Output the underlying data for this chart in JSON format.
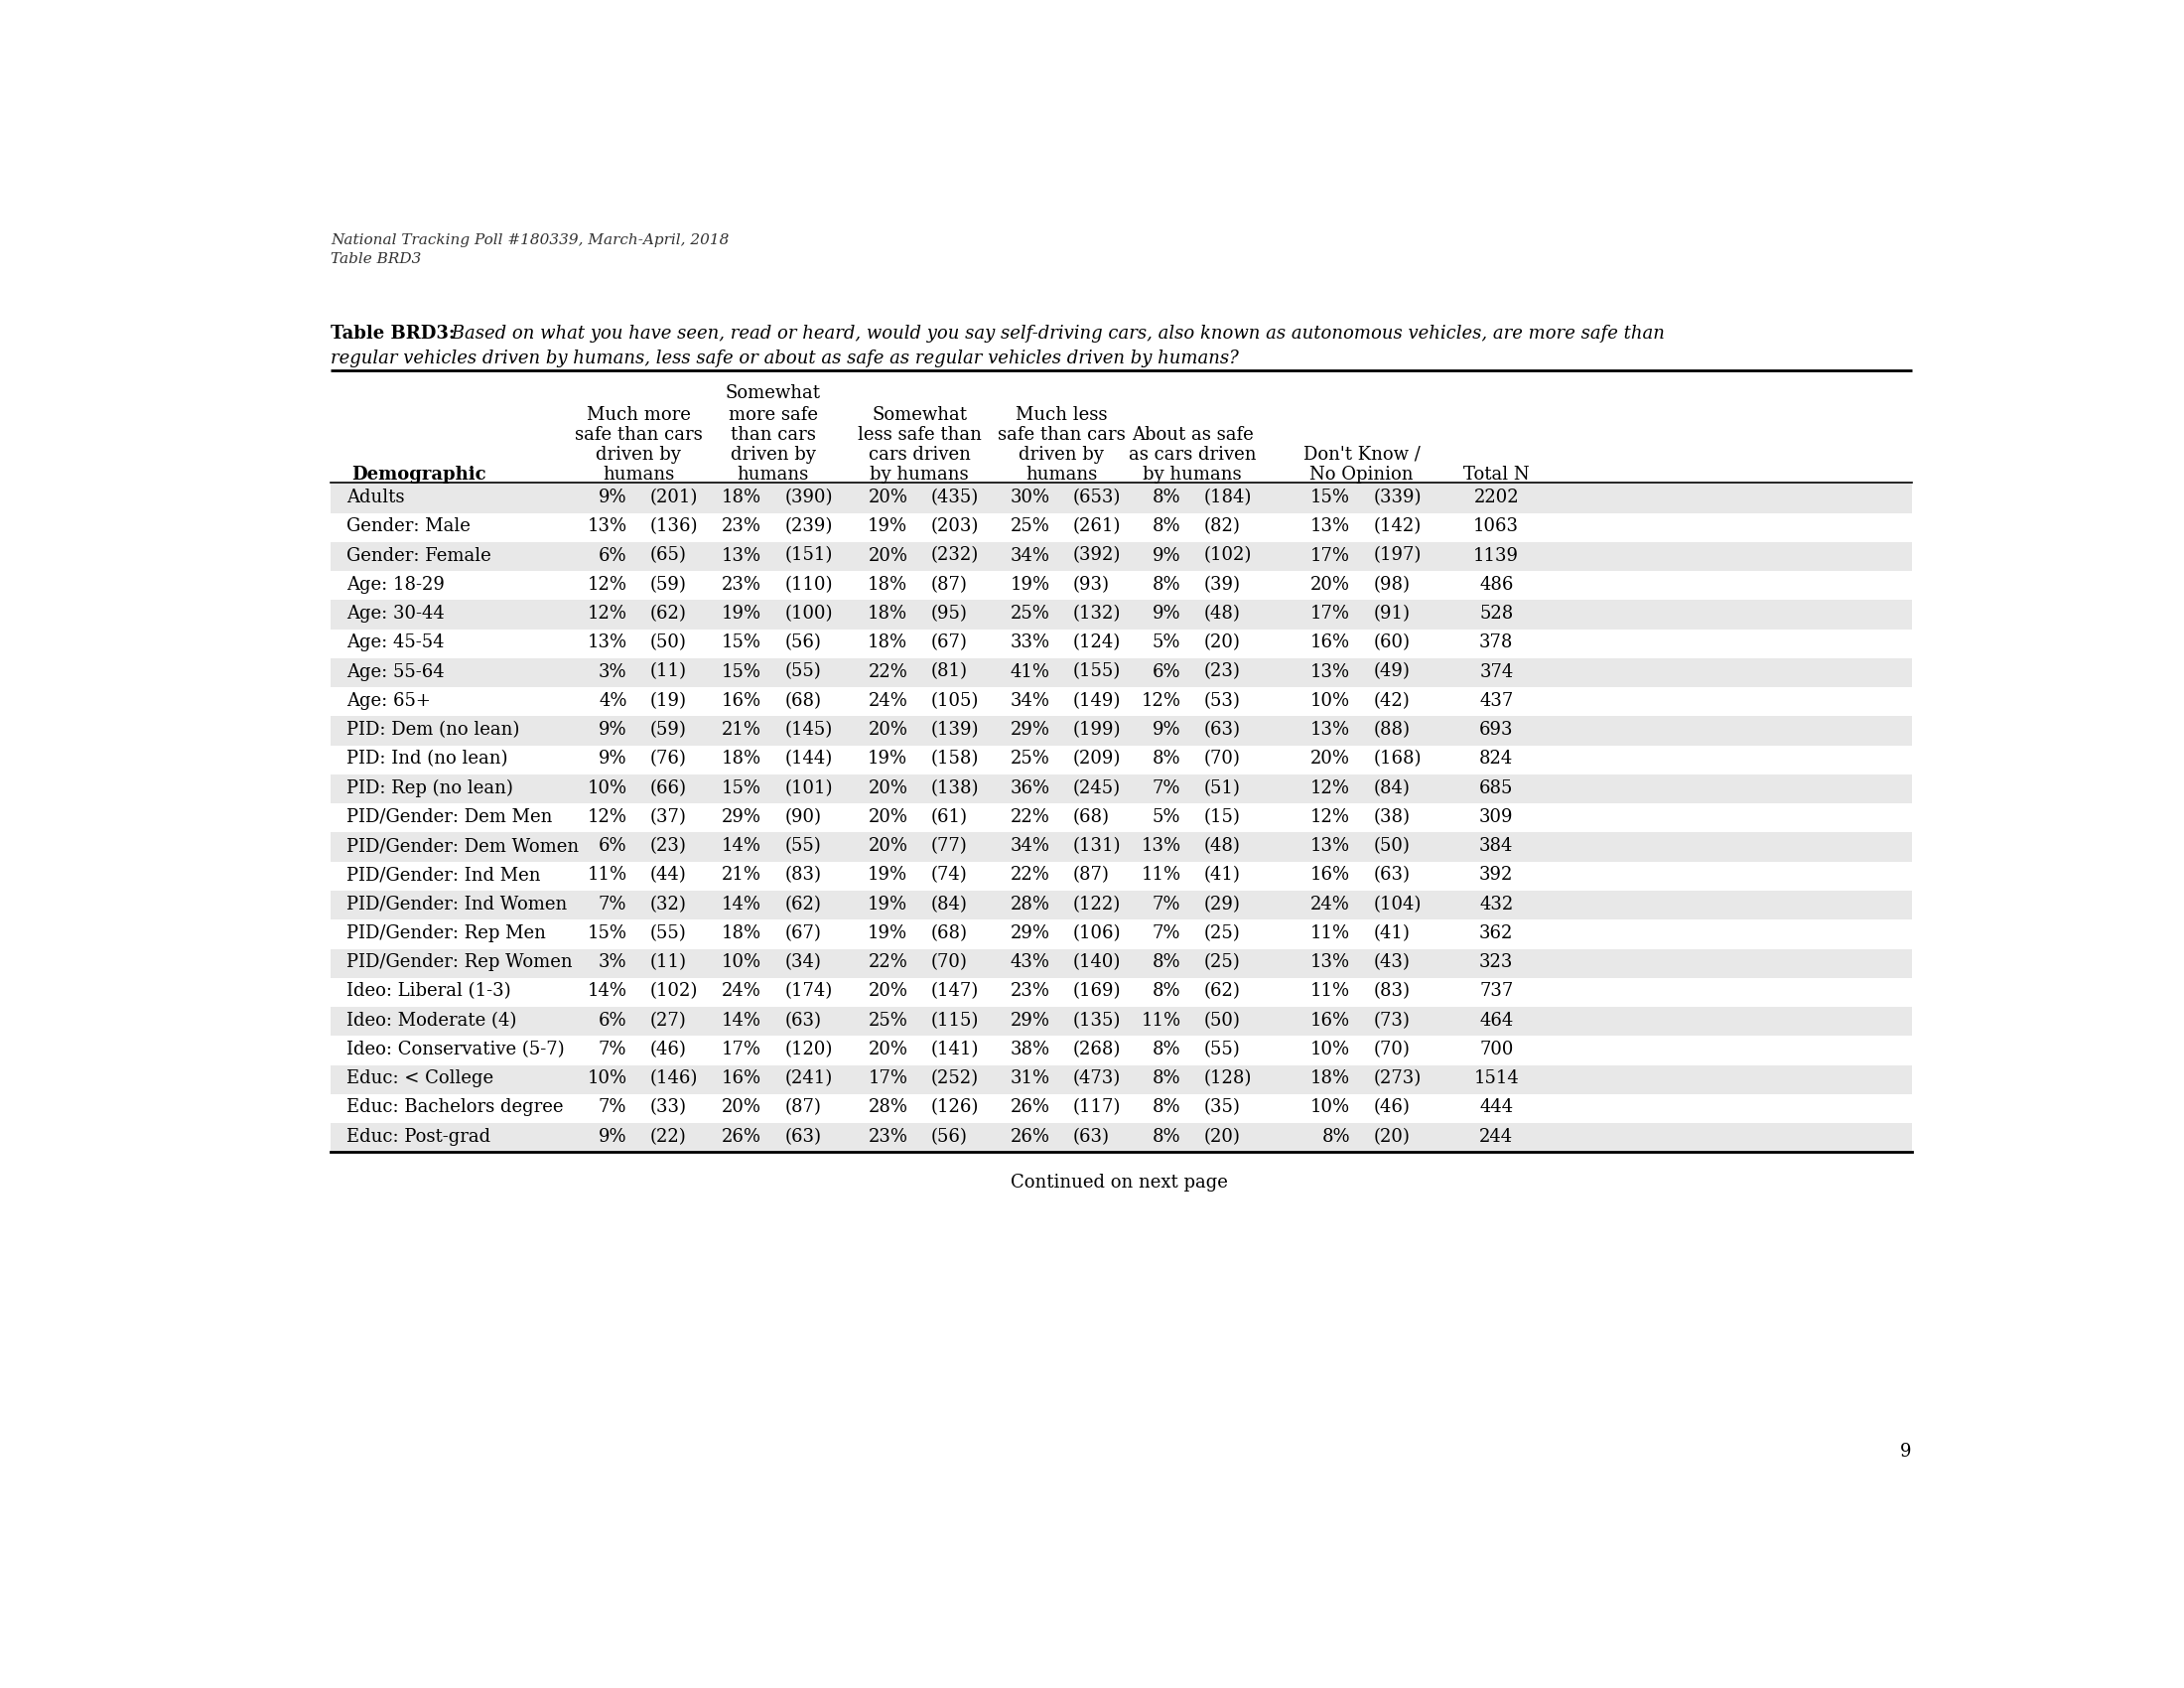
{
  "top_text_line1": "National Tracking Poll #180339, March-April, 2018",
  "top_text_line2": "Table BRD3",
  "title_bold": "Table BRD3:",
  "title_italic": " Based on what you have seen, read or heard, would you say self-driving cars, also known as autonomous vehicles, are more safe than",
  "title_line2": "regular vehicles driven by humans, less safe or about as safe as regular vehicles driven by humans?",
  "rows": [
    [
      "Adults",
      "9%",
      "(201)",
      "18%",
      "(390)",
      "20%",
      "(435)",
      "30%",
      "(653)",
      "8%",
      "(184)",
      "15%",
      "(339)",
      "2202"
    ],
    [
      "Gender: Male",
      "13%",
      "(136)",
      "23%",
      "(239)",
      "19%",
      "(203)",
      "25%",
      "(261)",
      "8%",
      "(82)",
      "13%",
      "(142)",
      "1063"
    ],
    [
      "Gender: Female",
      "6%",
      "(65)",
      "13%",
      "(151)",
      "20%",
      "(232)",
      "34%",
      "(392)",
      "9%",
      "(102)",
      "17%",
      "(197)",
      "1139"
    ],
    [
      "Age: 18-29",
      "12%",
      "(59)",
      "23%",
      "(110)",
      "18%",
      "(87)",
      "19%",
      "(93)",
      "8%",
      "(39)",
      "20%",
      "(98)",
      "486"
    ],
    [
      "Age: 30-44",
      "12%",
      "(62)",
      "19%",
      "(100)",
      "18%",
      "(95)",
      "25%",
      "(132)",
      "9%",
      "(48)",
      "17%",
      "(91)",
      "528"
    ],
    [
      "Age: 45-54",
      "13%",
      "(50)",
      "15%",
      "(56)",
      "18%",
      "(67)",
      "33%",
      "(124)",
      "5%",
      "(20)",
      "16%",
      "(60)",
      "378"
    ],
    [
      "Age: 55-64",
      "3%",
      "(11)",
      "15%",
      "(55)",
      "22%",
      "(81)",
      "41%",
      "(155)",
      "6%",
      "(23)",
      "13%",
      "(49)",
      "374"
    ],
    [
      "Age: 65+",
      "4%",
      "(19)",
      "16%",
      "(68)",
      "24%",
      "(105)",
      "34%",
      "(149)",
      "12%",
      "(53)",
      "10%",
      "(42)",
      "437"
    ],
    [
      "PID: Dem (no lean)",
      "9%",
      "(59)",
      "21%",
      "(145)",
      "20%",
      "(139)",
      "29%",
      "(199)",
      "9%",
      "(63)",
      "13%",
      "(88)",
      "693"
    ],
    [
      "PID: Ind (no lean)",
      "9%",
      "(76)",
      "18%",
      "(144)",
      "19%",
      "(158)",
      "25%",
      "(209)",
      "8%",
      "(70)",
      "20%",
      "(168)",
      "824"
    ],
    [
      "PID: Rep (no lean)",
      "10%",
      "(66)",
      "15%",
      "(101)",
      "20%",
      "(138)",
      "36%",
      "(245)",
      "7%",
      "(51)",
      "12%",
      "(84)",
      "685"
    ],
    [
      "PID/Gender: Dem Men",
      "12%",
      "(37)",
      "29%",
      "(90)",
      "20%",
      "(61)",
      "22%",
      "(68)",
      "5%",
      "(15)",
      "12%",
      "(38)",
      "309"
    ],
    [
      "PID/Gender: Dem Women",
      "6%",
      "(23)",
      "14%",
      "(55)",
      "20%",
      "(77)",
      "34%",
      "(131)",
      "13%",
      "(48)",
      "13%",
      "(50)",
      "384"
    ],
    [
      "PID/Gender: Ind Men",
      "11%",
      "(44)",
      "21%",
      "(83)",
      "19%",
      "(74)",
      "22%",
      "(87)",
      "11%",
      "(41)",
      "16%",
      "(63)",
      "392"
    ],
    [
      "PID/Gender: Ind Women",
      "7%",
      "(32)",
      "14%",
      "(62)",
      "19%",
      "(84)",
      "28%",
      "(122)",
      "7%",
      "(29)",
      "24%",
      "(104)",
      "432"
    ],
    [
      "PID/Gender: Rep Men",
      "15%",
      "(55)",
      "18%",
      "(67)",
      "19%",
      "(68)",
      "29%",
      "(106)",
      "7%",
      "(25)",
      "11%",
      "(41)",
      "362"
    ],
    [
      "PID/Gender: Rep Women",
      "3%",
      "(11)",
      "10%",
      "(34)",
      "22%",
      "(70)",
      "43%",
      "(140)",
      "8%",
      "(25)",
      "13%",
      "(43)",
      "323"
    ],
    [
      "Ideo: Liberal (1-3)",
      "14%",
      "(102)",
      "24%",
      "(174)",
      "20%",
      "(147)",
      "23%",
      "(169)",
      "8%",
      "(62)",
      "11%",
      "(83)",
      "737"
    ],
    [
      "Ideo: Moderate (4)",
      "6%",
      "(27)",
      "14%",
      "(63)",
      "25%",
      "(115)",
      "29%",
      "(135)",
      "11%",
      "(50)",
      "16%",
      "(73)",
      "464"
    ],
    [
      "Ideo: Conservative (5-7)",
      "7%",
      "(46)",
      "17%",
      "(120)",
      "20%",
      "(141)",
      "38%",
      "(268)",
      "8%",
      "(55)",
      "10%",
      "(70)",
      "700"
    ],
    [
      "Educ: < College",
      "10%",
      "(146)",
      "16%",
      "(241)",
      "17%",
      "(252)",
      "31%",
      "(473)",
      "8%",
      "(128)",
      "18%",
      "(273)",
      "1514"
    ],
    [
      "Educ: Bachelors degree",
      "7%",
      "(33)",
      "20%",
      "(87)",
      "28%",
      "(126)",
      "26%",
      "(117)",
      "8%",
      "(35)",
      "10%",
      "(46)",
      "444"
    ],
    [
      "Educ: Post-grad",
      "9%",
      "(22)",
      "26%",
      "(63)",
      "23%",
      "(56)",
      "26%",
      "(63)",
      "8%",
      "(20)",
      "8%",
      "(20)",
      "244"
    ]
  ],
  "footer": "Continued on next page",
  "page_number": "9",
  "bg_color": "#ffffff",
  "shaded_color": "#e8e8e8"
}
